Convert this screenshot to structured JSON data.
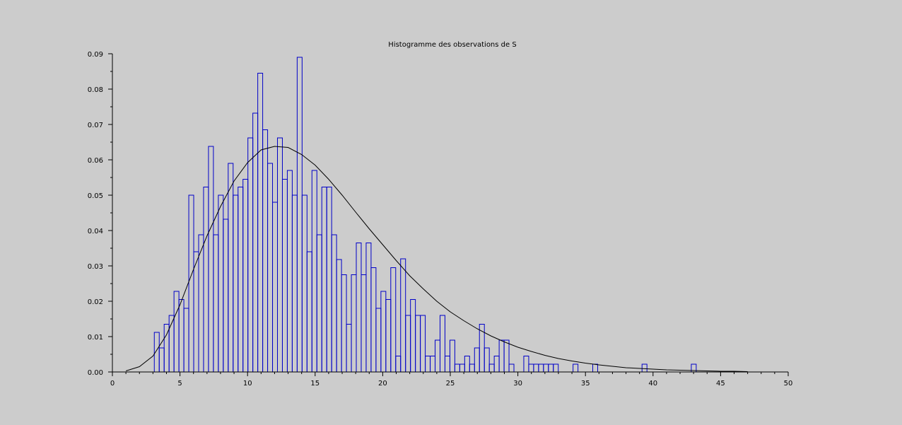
{
  "chart_data": {
    "type": "bar",
    "title": "Histogramme des observations de S",
    "xlabel": "",
    "ylabel": "",
    "xlim": [
      0,
      50
    ],
    "ylim": [
      0,
      0.09
    ],
    "x_ticks": [
      "0",
      "5",
      "10",
      "15",
      "20",
      "25",
      "30",
      "35",
      "40",
      "45",
      "50"
    ],
    "y_ticks": [
      "0.00",
      "0.01",
      "0.02",
      "0.03",
      "0.04",
      "0.05",
      "0.06",
      "0.07",
      "0.08",
      "0.09"
    ],
    "grid": false,
    "colors": {
      "bars": "#0000c8",
      "curve": "#000000",
      "axes": "#000000",
      "background": "#cccccc"
    },
    "bin_start": 3.1,
    "bin_width": 0.3645,
    "values": [
      0.0112,
      0.0068,
      0.0135,
      0.016,
      0.0228,
      0.0205,
      0.018,
      0.05,
      0.034,
      0.0388,
      0.0523,
      0.0638,
      0.0388,
      0.05,
      0.0432,
      0.059,
      0.05,
      0.0523,
      0.0545,
      0.0662,
      0.0732,
      0.0845,
      0.0685,
      0.059,
      0.048,
      0.0662,
      0.0545,
      0.057,
      0.05,
      0.089,
      0.05,
      0.034,
      0.057,
      0.0388,
      0.0523,
      0.0523,
      0.0388,
      0.0318,
      0.0275,
      0.0135,
      0.0275,
      0.0365,
      0.0275,
      0.0365,
      0.0295,
      0.018,
      0.0228,
      0.0205,
      0.0295,
      0.0045,
      0.032,
      0.016,
      0.0205,
      0.016,
      0.016,
      0.0045,
      0.0045,
      0.009,
      0.016,
      0.0045,
      0.009,
      0.0022,
      0.0022,
      0.0045,
      0.0022,
      0.0068,
      0.0135,
      0.0068,
      0.0022,
      0.0045,
      0.009,
      0.009,
      0.0022,
      0,
      0,
      0.0045,
      0.0022,
      0.0022,
      0.0022,
      0.0022,
      0.0022,
      0.0022,
      0,
      0,
      0,
      0.0022,
      0,
      0,
      0,
      0.0022,
      0,
      0,
      0,
      0,
      0,
      0,
      0,
      0,
      0,
      0.0022,
      0,
      0,
      0,
      0,
      0,
      0,
      0,
      0,
      0,
      0.0022
    ],
    "curve": {
      "x": [
        1,
        2,
        3,
        4,
        5,
        6,
        7,
        8,
        9,
        10,
        11,
        12,
        13,
        14,
        15,
        16,
        17,
        18,
        19,
        20,
        21,
        22,
        23,
        24,
        25,
        26,
        27,
        28,
        29,
        30,
        31,
        32,
        33,
        34,
        35,
        36,
        37,
        38,
        39,
        40,
        41,
        42,
        43,
        44,
        45,
        46,
        47
      ],
      "y": [
        0.0003,
        0.0015,
        0.0045,
        0.0105,
        0.019,
        0.029,
        0.0385,
        0.0468,
        0.054,
        0.0592,
        0.0628,
        0.0638,
        0.0635,
        0.0615,
        0.0585,
        0.0545,
        0.05,
        0.0452,
        0.0405,
        0.036,
        0.0315,
        0.0272,
        0.0235,
        0.02,
        0.017,
        0.0145,
        0.0122,
        0.0102,
        0.0085,
        0.007,
        0.0058,
        0.0047,
        0.0038,
        0.0031,
        0.0025,
        0.002,
        0.0016,
        0.0012,
        0.001,
        0.0008,
        0.0006,
        0.0005,
        0.0004,
        0.0003,
        0.0002,
        0.0002,
        0.0001
      ]
    }
  }
}
